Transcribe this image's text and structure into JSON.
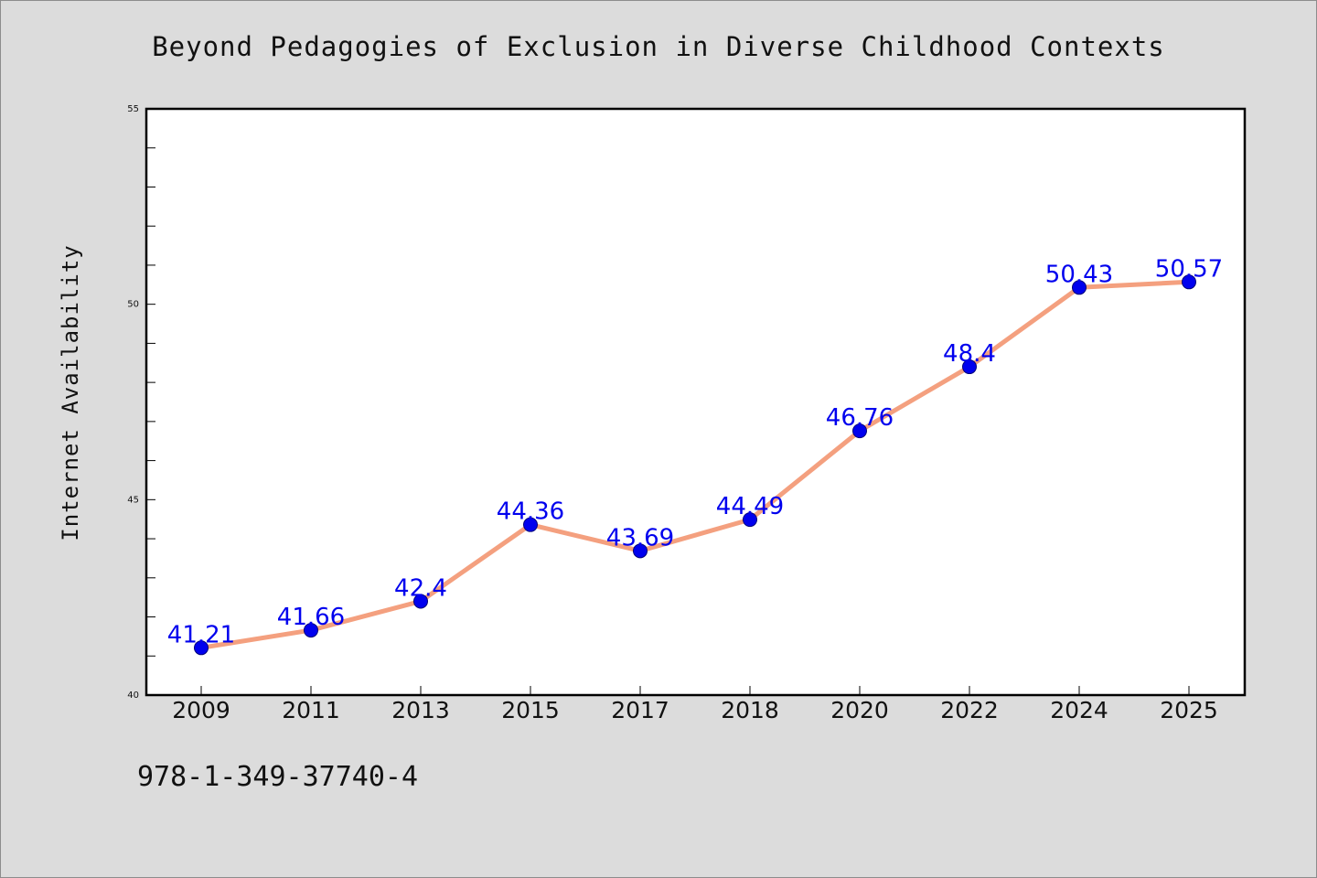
{
  "chart_data": {
    "type": "line",
    "title": "Beyond Pedagogies of Exclusion in Diverse Childhood Contexts",
    "xlabel": "",
    "ylabel": "Internet Availability",
    "categories": [
      "2009",
      "2011",
      "2013",
      "2015",
      "2017",
      "2018",
      "2020",
      "2022",
      "2024",
      "2025"
    ],
    "series": [
      {
        "values": [
          41.21,
          41.66,
          42.4,
          44.36,
          43.69,
          44.49,
          46.76,
          48.4,
          50.43,
          50.57
        ],
        "labels": [
          "41.21",
          "41.66",
          "42.4",
          "44.36",
          "43.69",
          "44.49",
          "46.76",
          "48.4",
          "50.43",
          "50.57"
        ]
      }
    ],
    "ylim": [
      40,
      55
    ],
    "yticks": [
      "40",
      "45",
      "50",
      "55"
    ],
    "grid": false,
    "legend": "none"
  },
  "footer": {
    "isbn": "978-1-349-37740-4"
  },
  "colors": {
    "line": "#f4a07f",
    "marker_fill": "#0000ee",
    "marker_stroke": "#00007a",
    "data_label": "#0000ee",
    "plot_background": "#ffffff",
    "page_background": "#dcdcdc"
  }
}
